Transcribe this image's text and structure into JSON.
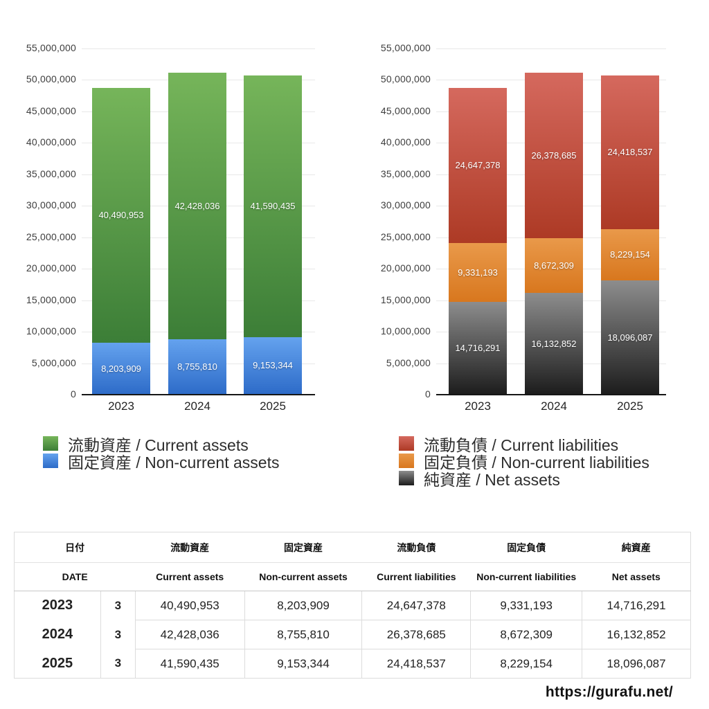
{
  "page": {
    "background": "#ffffff"
  },
  "chart_data": [
    {
      "id": "assets",
      "type": "bar",
      "stacked": true,
      "title": "",
      "xlabel": "",
      "ylabel": "",
      "categories": [
        "2023",
        "2024",
        "2025"
      ],
      "series": [
        {
          "name": "流動資産 / Current assets",
          "name_jp": "流動資産",
          "name_en": "Current assets",
          "color_top": "#76b55a",
          "color_bottom": "#3c7e37",
          "values": [
            40490953,
            42428036,
            41590435
          ]
        },
        {
          "name": "固定資産 / Non-current assets",
          "name_jp": "固定資産",
          "name_en": "Non-current assets",
          "color_top": "#64a2ee",
          "color_bottom": "#2d6bc8",
          "values": [
            8203909,
            8755810,
            9153344
          ]
        }
      ],
      "ylim": [
        0,
        55000000
      ],
      "ytick_step": 5000000,
      "ytick_labels": [
        "55,000,000",
        "50,000,000",
        "45,000,000",
        "40,000,000",
        "35,000,000",
        "30,000,000",
        "25,000,000",
        "20,000,000",
        "15,000,000",
        "10,000,000",
        "5,000,000",
        "0"
      ],
      "grid": true,
      "legend_position": "bottom-left",
      "bar_value_labels": true
    },
    {
      "id": "liabilities",
      "type": "bar",
      "stacked": true,
      "title": "",
      "xlabel": "",
      "ylabel": "",
      "categories": [
        "2023",
        "2024",
        "2025"
      ],
      "series": [
        {
          "name": "流動負債 / Current liabilities",
          "name_jp": "流動負債",
          "name_en": "Current liabilities",
          "color_top": "#d5695e",
          "color_bottom": "#ad3a25",
          "values": [
            24647378,
            26378685,
            24418537
          ]
        },
        {
          "name": "固定負債 / Non-current liabilities",
          "name_jp": "固定負債",
          "name_en": "Non-current liabilities",
          "color_top": "#e9994a",
          "color_bottom": "#d8771e",
          "values": [
            9331193,
            8672309,
            8229154
          ]
        },
        {
          "name": "純資産 / Net assets",
          "name_jp": "純資産",
          "name_en": "Net assets",
          "color_top": "#8d8d8d",
          "color_bottom": "#1c1c1c",
          "values": [
            14716291,
            16132852,
            18096087
          ]
        }
      ],
      "ylim": [
        0,
        55000000
      ],
      "ytick_step": 5000000,
      "ytick_labels": [
        "55,000,000",
        "50,000,000",
        "45,000,000",
        "40,000,000",
        "35,000,000",
        "30,000,000",
        "25,000,000",
        "20,000,000",
        "15,000,000",
        "10,000,000",
        "5,000,000",
        "0"
      ],
      "grid": true,
      "legend_position": "bottom-left",
      "bar_value_labels": true
    }
  ],
  "table": {
    "header_jp": [
      "日付",
      "流動資産",
      "固定資産",
      "流動負債",
      "固定負債",
      "純資産"
    ],
    "header_en": [
      "DATE",
      "Current assets",
      "Non-current assets",
      "Current liabilities",
      "Non-current liabilities",
      "Net assets"
    ],
    "rows": [
      {
        "year": "2023",
        "month": "3",
        "values": [
          40490953,
          8203909,
          24647378,
          9331193,
          14716291
        ]
      },
      {
        "year": "2024",
        "month": "3",
        "values": [
          42428036,
          8755810,
          26378685,
          8672309,
          16132852
        ]
      },
      {
        "year": "2025",
        "month": "3",
        "values": [
          41590435,
          9153344,
          24418537,
          8229154,
          18096087
        ]
      }
    ]
  },
  "footer": {
    "url": "https://gurafu.net/"
  }
}
